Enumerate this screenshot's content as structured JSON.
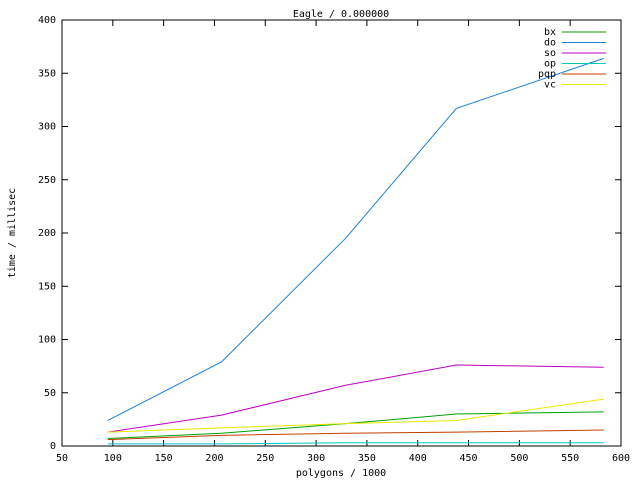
{
  "chart_data": {
    "type": "line",
    "title": "Eagle / 0.000000",
    "x_label": "polygons / 1000",
    "y_label": "time / millisec",
    "x": [
      95,
      207,
      329,
      438,
      583
    ],
    "series": [
      {
        "name": "bx",
        "color": "#00a000",
        "values": [
          7,
          12,
          21,
          30,
          32
        ]
      },
      {
        "name": "do",
        "color": "#1c80d8",
        "values": [
          24,
          79,
          195,
          317,
          364
        ]
      },
      {
        "name": "so",
        "color": "#c000c0",
        "values": [
          13,
          29,
          57,
          76,
          74
        ]
      },
      {
        "name": "op",
        "color": "#00c8c8",
        "values": [
          2,
          2,
          3,
          3,
          3
        ]
      },
      {
        "name": "pqp",
        "color": "#c04000",
        "values": [
          6,
          10,
          12,
          13,
          15
        ]
      },
      {
        "name": "vc",
        "color": "#e8e800",
        "values": [
          13,
          17,
          21,
          24,
          44
        ]
      }
    ],
    "xlim": [
      50,
      600
    ],
    "xticks": [
      50,
      100,
      150,
      200,
      250,
      300,
      350,
      400,
      450,
      500,
      550,
      600
    ],
    "ylim": [
      0,
      400
    ],
    "yticks": [
      0,
      50,
      100,
      150,
      200,
      250,
      300,
      350,
      400
    ],
    "grid": false,
    "legend": "top-right"
  }
}
